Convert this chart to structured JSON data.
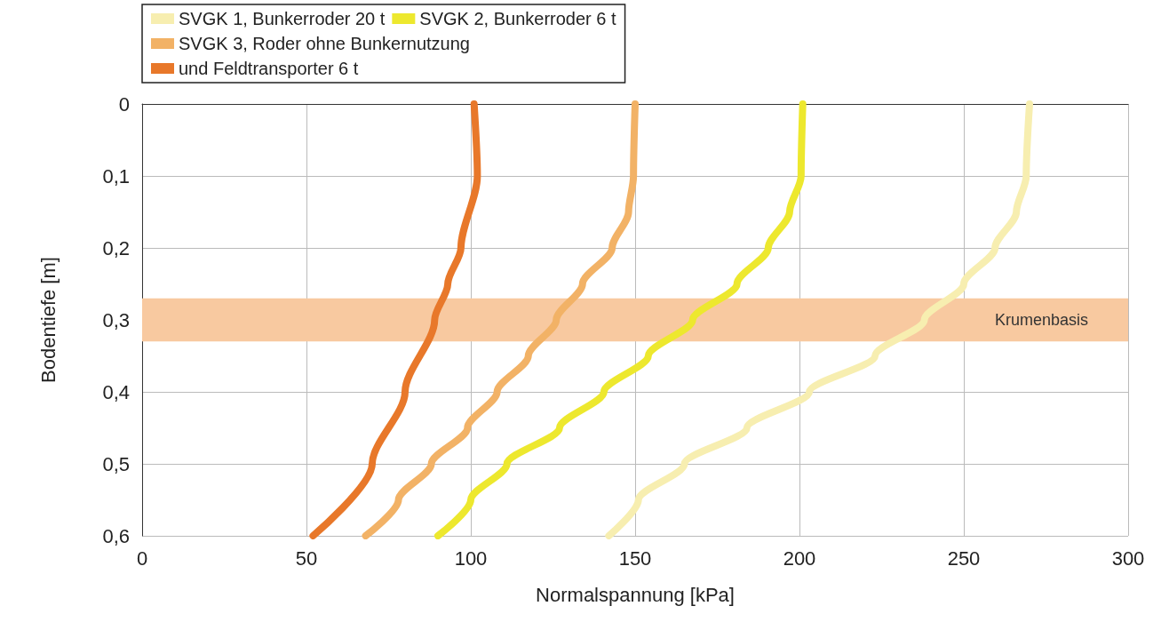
{
  "chart_data": {
    "type": "line",
    "xlabel": "Normalspannung [kPa]",
    "ylabel": "Bodentiefe [m]",
    "xlim": [
      0,
      300
    ],
    "xticks": [
      0,
      50,
      100,
      150,
      200,
      250,
      300
    ],
    "ylim": [
      0.6,
      0
    ],
    "yticks": [
      {
        "value": 0,
        "label": "0"
      },
      {
        "value": 0.1,
        "label": "0,1"
      },
      {
        "value": 0.2,
        "label": "0,2"
      },
      {
        "value": 0.3,
        "label": "0,3"
      },
      {
        "value": 0.4,
        "label": "0,4"
      },
      {
        "value": 0.5,
        "label": "0,5"
      },
      {
        "value": 0.6,
        "label": "0,6"
      }
    ],
    "grid": true,
    "legend": "top",
    "line_style": "solid",
    "series": [
      {
        "name": "SVGK 1, Bunkerroder 20 t",
        "color": "#f7eeb0",
        "x": [
          270,
          269,
          266,
          259.5,
          250,
          238,
          223,
          203,
          184,
          165,
          151,
          142
        ],
        "values": [
          0,
          0.1,
          0.15,
          0.2,
          0.25,
          0.3,
          0.35,
          0.4,
          0.45,
          0.5,
          0.55,
          0.6
        ]
      },
      {
        "name": "SVGK 2, Bunkerroder 6 t",
        "color": "#ede82e",
        "x": [
          201,
          200.5,
          197,
          190.5,
          181,
          167.5,
          154,
          140.5,
          127,
          111,
          100,
          90
        ],
        "values": [
          0,
          0.1,
          0.15,
          0.2,
          0.25,
          0.3,
          0.35,
          0.4,
          0.45,
          0.5,
          0.55,
          0.6
        ]
      },
      {
        "name": "SVGK 3, Roder ohne Bunkernutzung",
        "color": "#f2b266",
        "x": [
          150,
          149.5,
          148,
          143,
          134,
          126,
          117.5,
          108,
          99,
          88,
          78,
          68
        ],
        "values": [
          0,
          0.1,
          0.15,
          0.2,
          0.25,
          0.3,
          0.35,
          0.4,
          0.45,
          0.5,
          0.55,
          0.6
        ]
      },
      {
        "name": "und Feldtransporter 6 t",
        "color": "#e8782a",
        "x": [
          101,
          102,
          97,
          93,
          89,
          80,
          70,
          52
        ],
        "values": [
          0,
          0.1,
          0.2,
          0.25,
          0.3,
          0.4,
          0.5,
          0.6
        ]
      }
    ],
    "bands": [
      {
        "axis": "y",
        "from": 0.27,
        "to": 0.33,
        "label": "Krumenbasis",
        "color": "#f8c9a0"
      }
    ]
  }
}
